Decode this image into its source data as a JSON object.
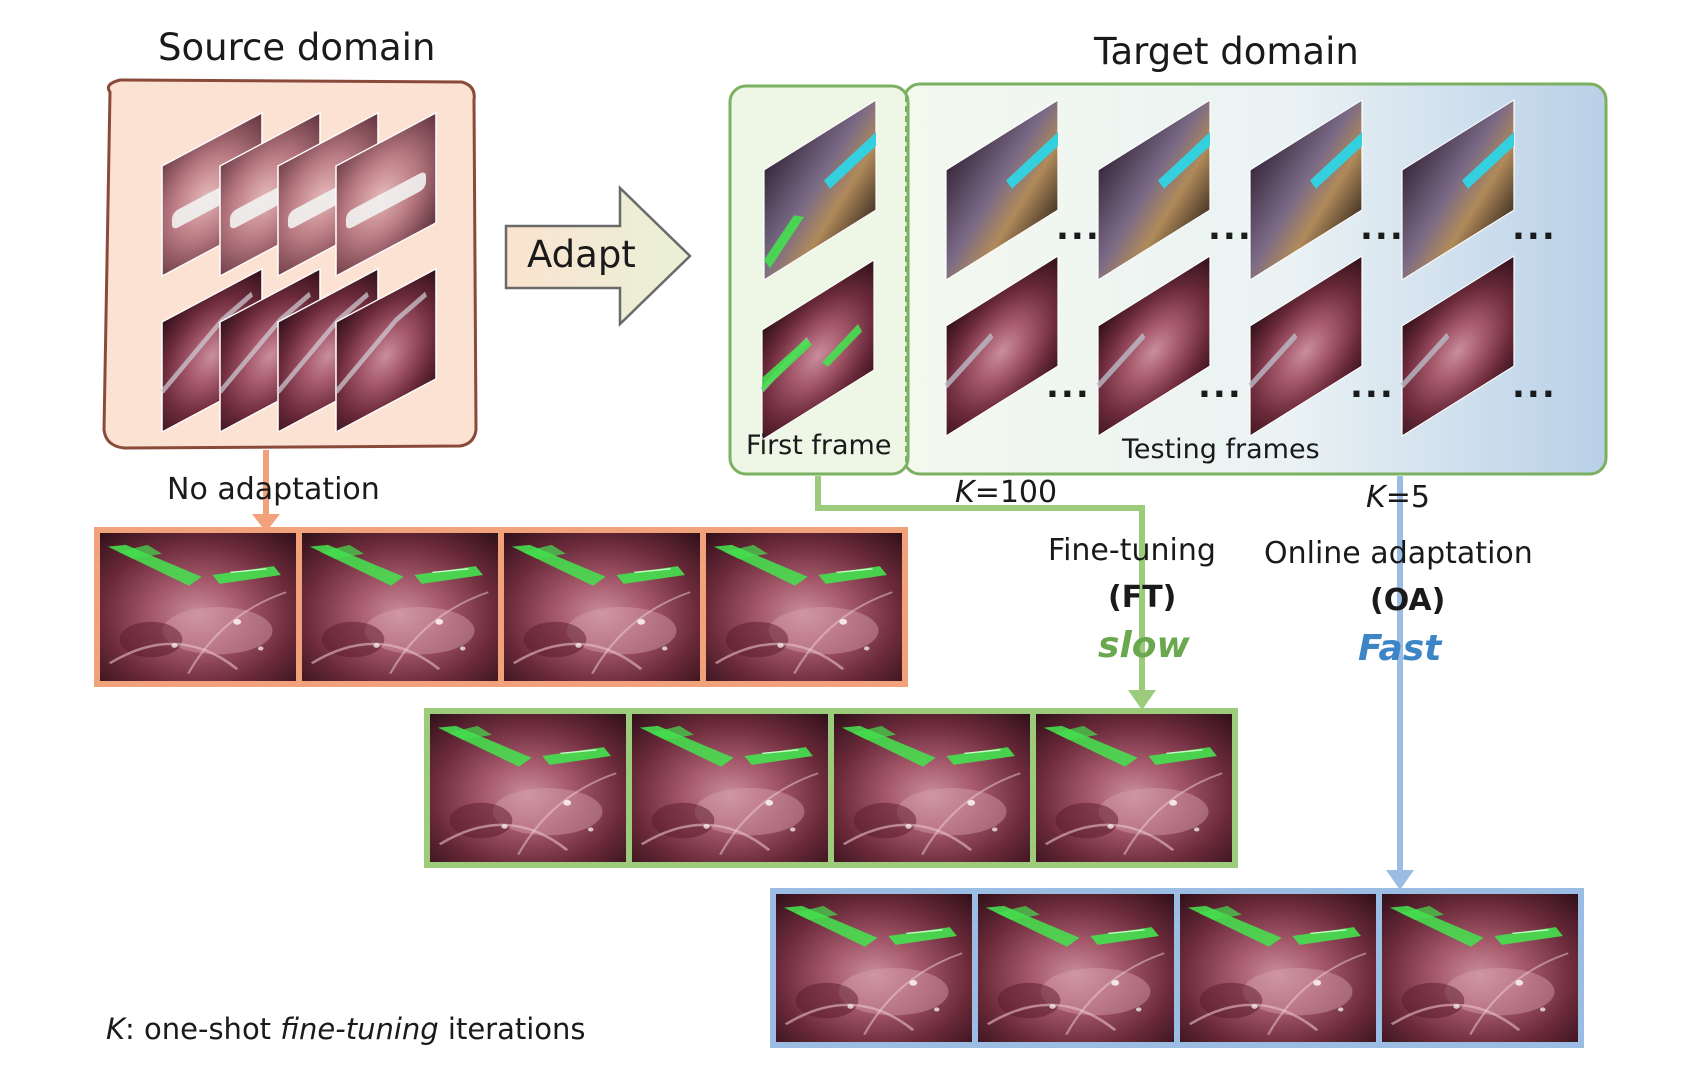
{
  "source": {
    "title": "Source domain"
  },
  "target": {
    "title": "Target domain",
    "first_frame_label": "First frame",
    "testing_frames_label": "Testing frames"
  },
  "adapt": {
    "label": "Adapt"
  },
  "no_adaptation": {
    "label": "No adaptation"
  },
  "ft": {
    "k_var": "K",
    "k_value": "=100",
    "line1": "Fine-tuning",
    "line2": "(FT)",
    "speed": "slow"
  },
  "oa": {
    "k_var": "K",
    "k_value": "=5",
    "line1": "Online adaptation",
    "line2": "(OA)",
    "speed": "Fast"
  },
  "footnote": {
    "k_var": "K",
    "prefix": ": one-shot ",
    "emph": "fine-tuning",
    "suffix": " iterations"
  },
  "ellipsis": "...",
  "colors": {
    "orange": "#f2a27a",
    "green": "#9dcb7c",
    "blue": "#9bbde3",
    "slow_text": "#6aa84f",
    "fast_text": "#3d85c6",
    "tool_green": "#45e04f",
    "tool_cyan": "#35d0e0"
  }
}
